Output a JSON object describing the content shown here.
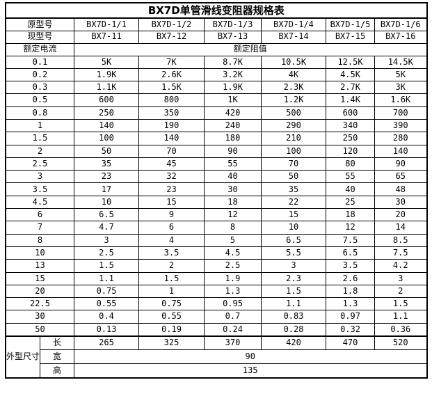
{
  "title": "BX7D单管滑线变阻器规格表",
  "colors": {
    "border": "#000000",
    "background": "#ffffff",
    "text": "#000000"
  },
  "header": {
    "old_model_label": "原型号",
    "old_models": [
      "BX7D-1/1",
      "BX7D-1/2",
      "BX7D-1/3",
      "BX7D-1/4",
      "BX7D-1/5",
      "BX7D-1/6"
    ],
    "new_model_label": "现型号",
    "new_models": [
      "BX7-11",
      "BX7-12",
      "BX7-13",
      "BX7-14",
      "BX7-15",
      "BX7-16"
    ],
    "current_label": "额定电流",
    "resistance_label": "额定阻值"
  },
  "rows": [
    {
      "current": "0.1",
      "values": [
        "5K",
        "7K",
        "8.7K",
        "10.5K",
        "12.5K",
        "14.5K"
      ]
    },
    {
      "current": "0.2",
      "values": [
        "1.9K",
        "2.6K",
        "3.2K",
        "4K",
        "4.5K",
        "5K"
      ]
    },
    {
      "current": "0.3",
      "values": [
        "1.1K",
        "1.5K",
        "1.9K",
        "2.3K",
        "2.7K",
        "3K"
      ]
    },
    {
      "current": "0.5",
      "values": [
        "600",
        "800",
        "1K",
        "1.2K",
        "1.4K",
        "1.6K"
      ]
    },
    {
      "current": "0.8",
      "values": [
        "250",
        "350",
        "420",
        "500",
        "600",
        "700"
      ]
    },
    {
      "current": "1",
      "values": [
        "140",
        "190",
        "240",
        "290",
        "340",
        "390"
      ]
    },
    {
      "current": "1.5",
      "values": [
        "100",
        "140",
        "180",
        "210",
        "250",
        "280"
      ]
    },
    {
      "current": "2",
      "values": [
        "50",
        "70",
        "90",
        "100",
        "120",
        "140"
      ]
    },
    {
      "current": "2.5",
      "values": [
        "35",
        "45",
        "55",
        "70",
        "80",
        "90"
      ]
    },
    {
      "current": "3",
      "values": [
        "23",
        "32",
        "40",
        "50",
        "55",
        "65"
      ]
    },
    {
      "current": "3.5",
      "values": [
        "17",
        "23",
        "30",
        "35",
        "40",
        "48"
      ]
    },
    {
      "current": "4.5",
      "values": [
        "10",
        "15",
        "18",
        "22",
        "25",
        "30"
      ]
    },
    {
      "current": "6",
      "values": [
        "6.5",
        "9",
        "12",
        "15",
        "18",
        "20"
      ]
    },
    {
      "current": "7",
      "values": [
        "4.7",
        "6",
        "8",
        "10",
        "12",
        "14"
      ]
    },
    {
      "current": "8",
      "values": [
        "3",
        "4",
        "5",
        "6.5",
        "7.5",
        "8.5"
      ]
    },
    {
      "current": "10",
      "values": [
        "2.5",
        "3.5",
        "4.5",
        "5.5",
        "6.5",
        "7.5"
      ]
    },
    {
      "current": "13",
      "values": [
        "1.5",
        "2",
        "2.5",
        "3",
        "3.5",
        "4.2"
      ]
    },
    {
      "current": "15",
      "values": [
        "1.1",
        "1.5",
        "1.9",
        "2.3",
        "2.6",
        "3"
      ]
    },
    {
      "current": "20",
      "values": [
        "0.75",
        "1",
        "1.3",
        "1.5",
        "1.8",
        "2"
      ]
    },
    {
      "current": "22.5",
      "values": [
        "0.55",
        "0.75",
        "0.95",
        "1.1",
        "1.3",
        "1.5"
      ]
    },
    {
      "current": "30",
      "values": [
        "0.4",
        "0.55",
        "0.7",
        "0.83",
        "0.97",
        "1.1"
      ]
    },
    {
      "current": "50",
      "values": [
        "0.13",
        "0.19",
        "0.24",
        "0.28",
        "0.32",
        "0.36"
      ]
    }
  ],
  "dimensions": {
    "label": "外型尺寸",
    "length_label": "长",
    "length_values": [
      "265",
      "325",
      "370",
      "420",
      "470",
      "520"
    ],
    "width_label": "宽",
    "width_value": "90",
    "height_label": "高",
    "height_value": "135"
  }
}
